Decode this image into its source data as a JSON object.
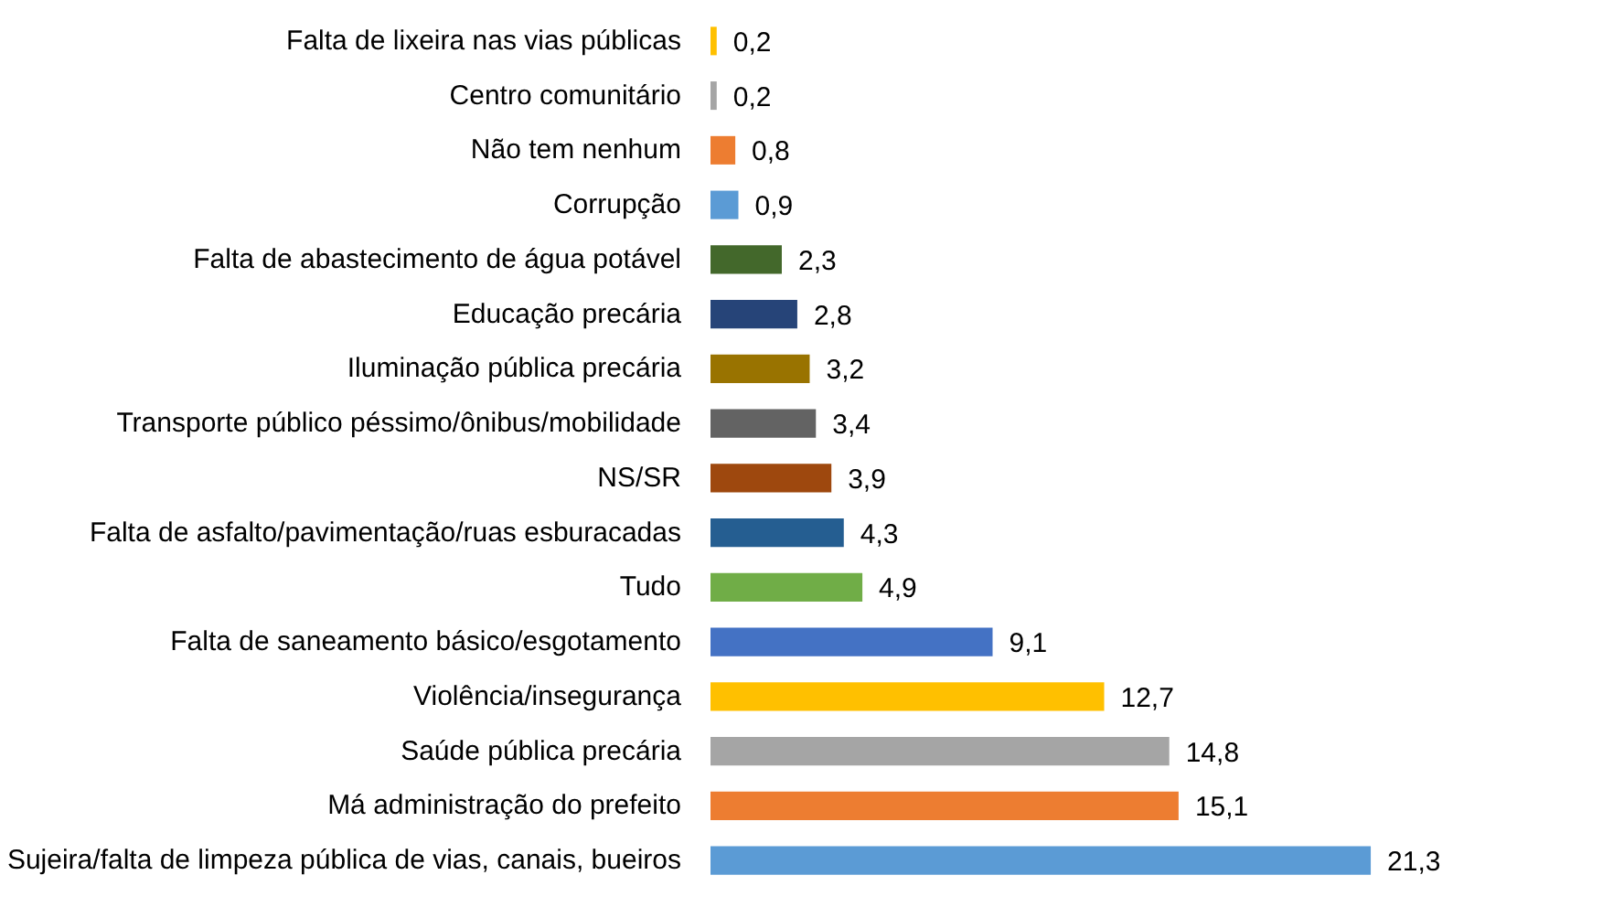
{
  "chart_data": {
    "type": "bar",
    "orientation": "horizontal",
    "categories": [
      "Falta de lixeira nas vias públicas",
      "Centro comunitário",
      "Não tem nenhum",
      "Corrupção",
      "Falta de abastecimento de água potável",
      "Educação precária",
      "Iluminação pública precária",
      "Transporte público péssimo/ônibus/mobilidade",
      "NS/SR",
      "Falta de asfalto/pavimentação/ruas esburacadas",
      "Tudo",
      "Falta de saneamento básico/esgotamento",
      "Violência/insegurança",
      "Saúde pública precária",
      "Má administração do prefeito",
      "Sujeira/falta de limpeza pública de vias, canais, bueiros"
    ],
    "values": [
      0.2,
      0.2,
      0.8,
      0.9,
      2.3,
      2.8,
      3.2,
      3.4,
      3.9,
      4.3,
      4.9,
      9.1,
      12.7,
      14.8,
      15.1,
      21.3
    ],
    "value_labels": [
      "0,2",
      "0,2",
      "0,8",
      "0,9",
      "2,3",
      "2,8",
      "3,2",
      "3,4",
      "3,9",
      "4,3",
      "4,9",
      "9,1",
      "12,7",
      "14,8",
      "15,1",
      "21,3"
    ],
    "colors": [
      "#ffc000",
      "#a5a5a5",
      "#ed7d31",
      "#5b9bd5",
      "#43682b",
      "#264478",
      "#997300",
      "#636363",
      "#9e480e",
      "#255e91",
      "#70ad47",
      "#4472c4",
      "#ffc000",
      "#a5a5a5",
      "#ed7d31",
      "#5b9bd5"
    ],
    "grid": false
  }
}
